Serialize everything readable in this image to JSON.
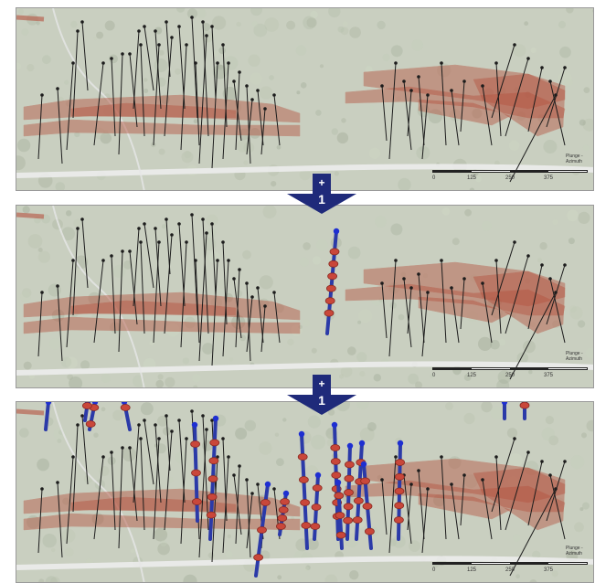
{
  "steps": [
    {
      "plus": "+",
      "number": "1"
    },
    {
      "plus": "+",
      "number": "1"
    }
  ],
  "scale_ticks": [
    "0",
    "125",
    "250",
    "375"
  ],
  "legend_lines": [
    "Plunge -",
    "Azimuth"
  ],
  "colors": {
    "map_background": "#c9cfc0",
    "ore_zone": "#b5523f",
    "existing_drillhole": "#1c1c1c",
    "new_drillhole": "#2b3aa8",
    "new_drillhole_collar": "#1e2fd1",
    "intercept": "#c9473a",
    "arrow": "#1f2a7a"
  }
}
